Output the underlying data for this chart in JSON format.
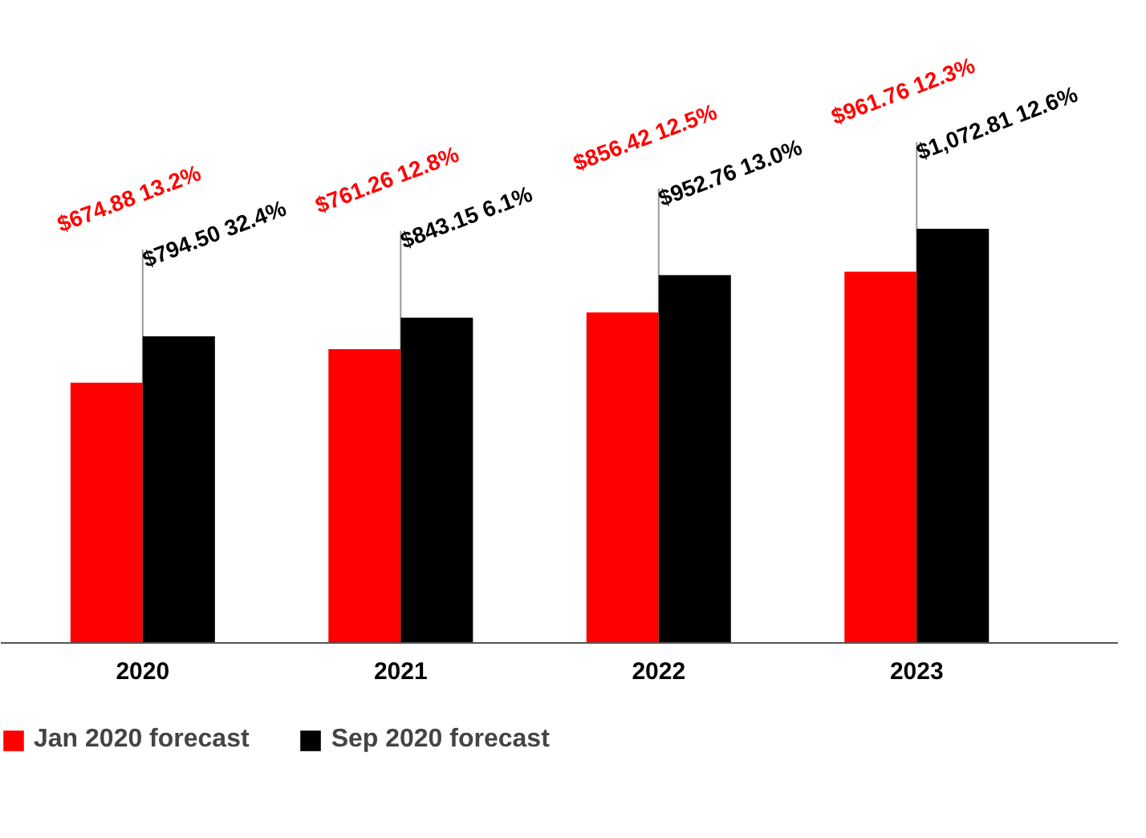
{
  "chart_data": {
    "type": "bar",
    "categories": [
      "2020",
      "2021",
      "2022",
      "2023"
    ],
    "series": [
      {
        "name": "Jan 2020 forecast",
        "color": "#ff0000",
        "values": [
          674.88,
          761.26,
          856.42,
          961.76
        ],
        "value_labels": [
          "$674.88 13.2%",
          "$761.26 12.8%",
          "$856.42 12.5%",
          "$961.76 12.3%"
        ]
      },
      {
        "name": "Sep 2020 forecast",
        "color": "#000000",
        "values": [
          794.5,
          843.15,
          952.76,
          1072.81
        ],
        "value_labels": [
          "$794.50 32.4%",
          "$843.15 6.1%",
          "$952.76 13.0%",
          "$1,072.81 12.6%"
        ]
      }
    ],
    "legend": "bottom left"
  }
}
